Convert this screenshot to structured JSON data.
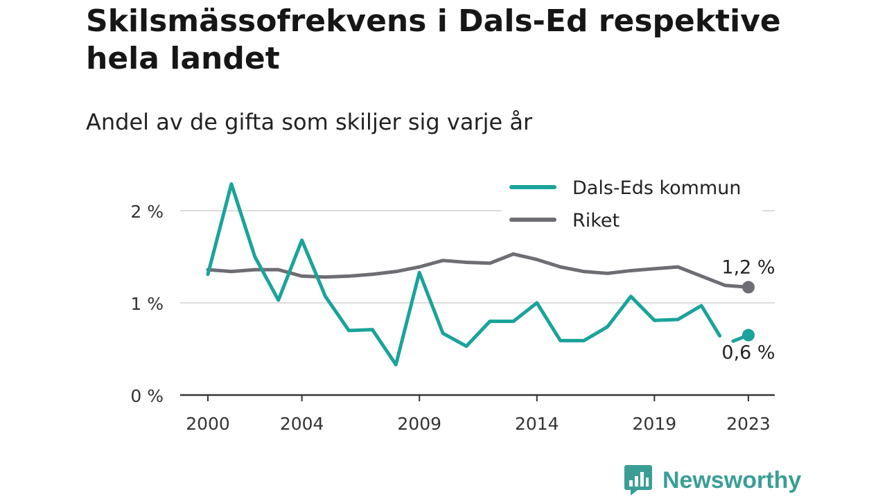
{
  "title": "Skilsmässofrekvens i Dals-Ed respektive hela landet",
  "subtitle": "Andel av de gifta som skiljer sig varje år",
  "brand": {
    "name": "Newsworthy",
    "color": "#3a9e96",
    "icon": "bar-chart-speech-bubble-icon"
  },
  "chart_data": {
    "type": "line",
    "x": [
      2000,
      2001,
      2002,
      2003,
      2004,
      2005,
      2006,
      2007,
      2008,
      2009,
      2010,
      2011,
      2012,
      2013,
      2014,
      2015,
      2016,
      2017,
      2018,
      2019,
      2020,
      2021,
      2022,
      2023
    ],
    "x_ticks": [
      2000,
      2004,
      2009,
      2014,
      2019,
      2023
    ],
    "x_tick_labels": [
      "2000",
      "2004",
      "2009",
      "2014",
      "2019",
      "2023"
    ],
    "y_ticks": [
      0,
      1,
      2
    ],
    "y_tick_labels": [
      "0 %",
      "1 %",
      "2 %"
    ],
    "ylim": [
      0,
      2.3
    ],
    "grid": true,
    "legend": "top-right",
    "series": [
      {
        "name": "Dals-Eds kommun",
        "color": "#1aa39a",
        "values": [
          1.31,
          2.29,
          1.5,
          1.03,
          1.68,
          1.07,
          0.7,
          0.71,
          0.33,
          1.33,
          0.67,
          0.53,
          0.8,
          0.8,
          1.0,
          0.59,
          0.59,
          0.74,
          1.07,
          0.81,
          0.82,
          0.97,
          0.55,
          0.65
        ],
        "gap_after": 2022,
        "end_label": "0,6 %"
      },
      {
        "name": "Riket",
        "color": "#6d6d73",
        "values": [
          1.36,
          1.34,
          1.36,
          1.36,
          1.29,
          1.28,
          1.29,
          1.31,
          1.34,
          1.39,
          1.46,
          1.44,
          1.43,
          1.53,
          1.47,
          1.39,
          1.34,
          1.32,
          1.35,
          1.37,
          1.39,
          1.29,
          1.19,
          1.17
        ],
        "end_label": "1,2 %"
      }
    ]
  }
}
